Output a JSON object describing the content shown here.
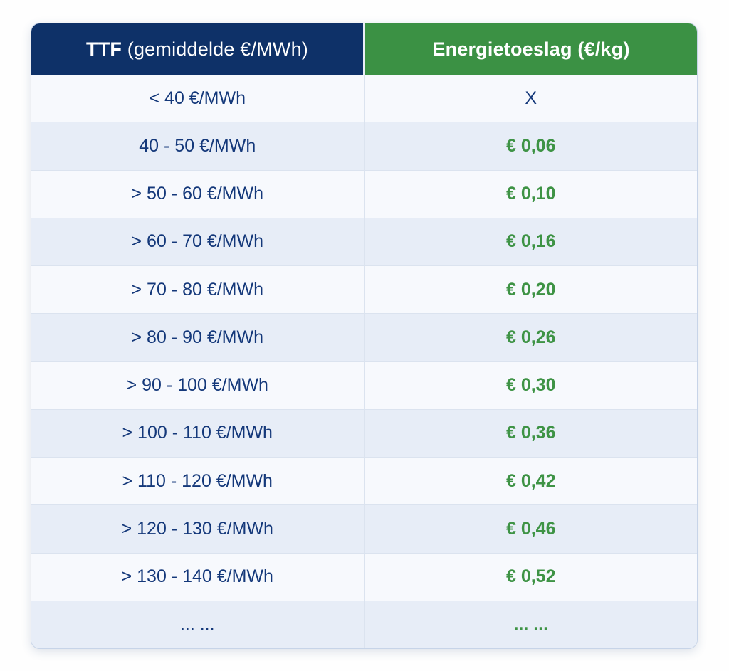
{
  "page": {
    "background": "#fefefe"
  },
  "table": {
    "header": {
      "ttf_bold": "TTF",
      "ttf_rest": " (gemiddelde €/MWh)",
      "toeslag": "Energietoeslag (€/kg)"
    },
    "colors": {
      "header_navy": "#0e3168",
      "header_green": "#3b9144",
      "text_navy": "#14387a",
      "text_green": "#3e9345",
      "row_light": "#f7f9fd",
      "row_shaded": "#e7edf7",
      "border": "#c7d4e8",
      "divider": "#dbe3ef"
    },
    "rows": [
      {
        "ttf": "< 40 €/MWh",
        "toeslag": "X",
        "toeslag_style": "plain"
      },
      {
        "ttf": "40 - 50 €/MWh",
        "toeslag": "€ 0,06",
        "toeslag_style": "value"
      },
      {
        "ttf": "> 50 - 60 €/MWh",
        "toeslag": "€ 0,10",
        "toeslag_style": "value"
      },
      {
        "ttf": "> 60 - 70 €/MWh",
        "toeslag": "€ 0,16",
        "toeslag_style": "value"
      },
      {
        "ttf": "> 70 - 80 €/MWh",
        "toeslag": "€ 0,20",
        "toeslag_style": "value"
      },
      {
        "ttf": "> 80 - 90 €/MWh",
        "toeslag": "€ 0,26",
        "toeslag_style": "value"
      },
      {
        "ttf": "> 90 - 100 €/MWh",
        "toeslag": "€ 0,30",
        "toeslag_style": "value"
      },
      {
        "ttf": "> 100 - 110 €/MWh",
        "toeslag": "€ 0,36",
        "toeslag_style": "value"
      },
      {
        "ttf": "> 110 - 120 €/MWh",
        "toeslag": "€ 0,42",
        "toeslag_style": "value"
      },
      {
        "ttf": "> 120 - 130 €/MWh",
        "toeslag": "€ 0,46",
        "toeslag_style": "value"
      },
      {
        "ttf": "> 130 - 140 €/MWh",
        "toeslag": "€ 0,52",
        "toeslag_style": "value"
      },
      {
        "ttf": "... ...",
        "toeslag": "... ...",
        "toeslag_style": "value"
      }
    ]
  },
  "chart_data": {
    "type": "table",
    "columns": [
      "TTF (gemiddelde €/MWh)",
      "Energietoeslag (€/kg)"
    ],
    "rows": [
      [
        "< 40 €/MWh",
        "X"
      ],
      [
        "40 - 50 €/MWh",
        "€ 0,06"
      ],
      [
        "> 50 - 60 €/MWh",
        "€ 0,10"
      ],
      [
        "> 60 - 70 €/MWh",
        "€ 0,16"
      ],
      [
        "> 70 - 80 €/MWh",
        "€ 0,20"
      ],
      [
        "> 80 - 90 €/MWh",
        "€ 0,26"
      ],
      [
        "> 90 - 100 €/MWh",
        "€ 0,30"
      ],
      [
        "> 100 - 110 €/MWh",
        "€ 0,36"
      ],
      [
        "> 110 - 120 €/MWh",
        "€ 0,42"
      ],
      [
        "> 120 - 130 €/MWh",
        "€ 0,46"
      ],
      [
        "> 130 - 140 €/MWh",
        "€ 0,52"
      ],
      [
        "... ...",
        "... ..."
      ]
    ],
    "title": "",
    "notes": "Energy surcharge (€/kg) per average TTF gas price band (€/MWh); alternating-row pricing table, Dutch locale decimal commas"
  }
}
